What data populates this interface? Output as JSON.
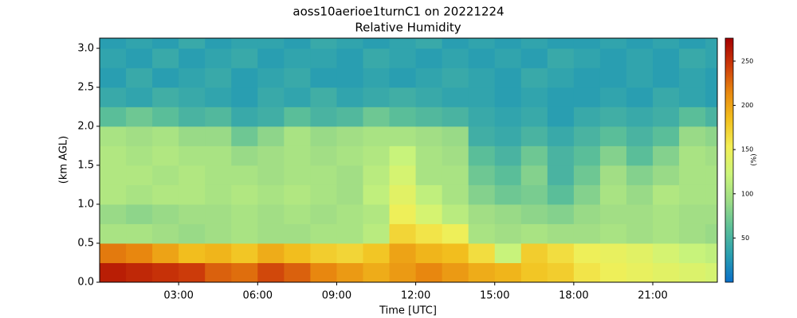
{
  "chart_data": {
    "type": "heatmap",
    "title": "aoss10aerioe1turnC1 on 20221224",
    "subtitle": "Relative Humidity",
    "xlabel": "Time [UTC]",
    "ylabel": "(km AGL)",
    "colorbar_label": "(%)",
    "xlim": [
      0,
      23.45
    ],
    "xticks": [
      {
        "value": 3,
        "label": "03:00"
      },
      {
        "value": 6,
        "label": "06:00"
      },
      {
        "value": 9,
        "label": "09:00"
      },
      {
        "value": 12,
        "label": "12:00"
      },
      {
        "value": 15,
        "label": "15:00"
      },
      {
        "value": 18,
        "label": "18:00"
      },
      {
        "value": 21,
        "label": "21:00"
      }
    ],
    "ylim": [
      0,
      3.13
    ],
    "yticks": [
      {
        "value": 0,
        "label": "0.0"
      },
      0.5,
      {
        "value": 1,
        "label": "1.0"
      },
      1.5,
      {
        "value": 2,
        "label": "2.0"
      },
      2.5,
      {
        "value": 3,
        "label": "3.0"
      }
    ],
    "clim": [
      0,
      276
    ],
    "cticks": [
      50,
      100,
      150,
      200,
      250
    ],
    "colormap": [
      "#0a6fc8",
      "#2a9fb0",
      "#5cbf98",
      "#9ddc86",
      "#ccf57a",
      "#f2ee55",
      "#f2c01e",
      "#e8880f",
      "#cc3a0a",
      "#a40000"
    ],
    "x_bins": [
      0,
      1,
      2,
      3,
      4,
      5,
      6,
      7,
      8,
      9,
      10,
      11,
      12,
      13,
      14,
      15,
      16,
      17,
      18,
      19,
      20,
      21,
      22,
      23,
      23.45
    ],
    "y_bins": [
      0,
      0.25,
      0.5,
      0.75,
      1,
      1.25,
      1.5,
      1.75,
      2,
      2.25,
      2.5,
      2.75,
      3,
      3.13
    ],
    "z": [
      [
        260,
        255,
        250,
        245,
        230,
        225,
        240,
        230,
        215,
        205,
        195,
        205,
        215,
        205,
        195,
        190,
        180,
        175,
        160,
        150,
        145,
        140,
        135,
        130
      ],
      [
        220,
        215,
        200,
        185,
        190,
        180,
        195,
        185,
        175,
        170,
        180,
        200,
        190,
        185,
        165,
        120,
        175,
        165,
        150,
        145,
        140,
        130,
        120,
        115
      ],
      [
        100,
        100,
        95,
        90,
        95,
        100,
        95,
        95,
        100,
        100,
        110,
        170,
        160,
        150,
        100,
        95,
        100,
        95,
        95,
        100,
        95,
        100,
        95,
        90
      ],
      [
        90,
        85,
        90,
        95,
        95,
        100,
        95,
        100,
        95,
        100,
        105,
        150,
        130,
        110,
        95,
        90,
        85,
        80,
        90,
        95,
        95,
        100,
        95,
        95
      ],
      [
        105,
        100,
        105,
        105,
        100,
        105,
        100,
        105,
        100,
        95,
        115,
        140,
        115,
        100,
        80,
        70,
        75,
        60,
        80,
        100,
        90,
        105,
        100,
        100
      ],
      [
        105,
        105,
        100,
        105,
        100,
        100,
        95,
        100,
        100,
        95,
        110,
        130,
        100,
        100,
        70,
        60,
        80,
        50,
        70,
        95,
        80,
        90,
        100,
        100
      ],
      [
        105,
        100,
        105,
        100,
        100,
        90,
        95,
        100,
        95,
        100,
        105,
        120,
        100,
        95,
        60,
        50,
        70,
        50,
        60,
        80,
        60,
        80,
        100,
        95
      ],
      [
        100,
        95,
        100,
        90,
        90,
        70,
        85,
        100,
        90,
        95,
        100,
        100,
        95,
        90,
        45,
        40,
        50,
        40,
        50,
        60,
        50,
        60,
        90,
        85
      ],
      [
        60,
        70,
        60,
        50,
        55,
        40,
        45,
        60,
        50,
        55,
        70,
        60,
        55,
        50,
        40,
        35,
        40,
        30,
        40,
        45,
        40,
        45,
        60,
        50
      ],
      [
        40,
        35,
        45,
        40,
        35,
        30,
        40,
        35,
        45,
        35,
        40,
        45,
        40,
        35,
        35,
        30,
        35,
        30,
        30,
        35,
        30,
        40,
        35,
        30
      ],
      [
        30,
        40,
        30,
        35,
        40,
        30,
        35,
        40,
        30,
        30,
        35,
        30,
        35,
        40,
        35,
        30,
        40,
        35,
        30,
        30,
        35,
        30,
        35,
        30
      ],
      [
        35,
        30,
        40,
        30,
        35,
        40,
        30,
        35,
        35,
        30,
        40,
        35,
        30,
        35,
        30,
        35,
        30,
        40,
        35,
        30,
        35,
        30,
        40,
        35
      ],
      [
        30,
        35,
        30,
        40,
        30,
        35,
        35,
        30,
        40,
        35,
        30,
        35,
        40,
        30,
        35,
        30,
        35,
        30,
        30,
        35,
        30,
        35,
        30,
        35
      ]
    ]
  }
}
